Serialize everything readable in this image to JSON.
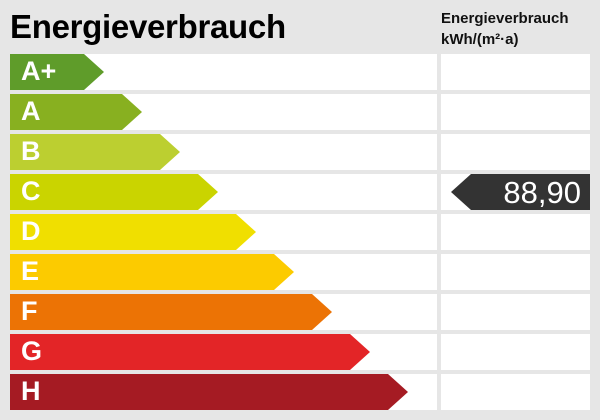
{
  "chart_data": {
    "type": "bar",
    "title": "Energieverbrauch",
    "column_header": [
      "Energieverbrauch",
      "kWh/(m²·a)"
    ],
    "categories": [
      "A+",
      "A",
      "B",
      "C",
      "D",
      "E",
      "F",
      "G",
      "H"
    ],
    "colors": [
      "#5f9c2a",
      "#88b020",
      "#bccf30",
      "#cad400",
      "#f0df00",
      "#fccb00",
      "#ec7305",
      "#e32527",
      "#a51b23"
    ],
    "value": {
      "class": "C",
      "label": "88,90",
      "marker_color": "#333333"
    }
  }
}
